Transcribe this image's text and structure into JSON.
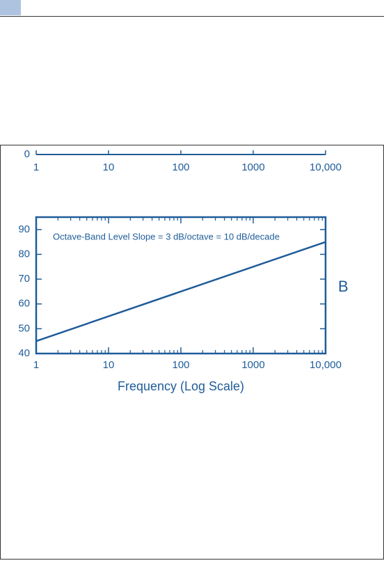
{
  "chart_data": [
    {
      "type": "line",
      "log_x": true,
      "xlim": [
        1,
        10000
      ],
      "xticks": [
        1,
        10,
        100,
        1000,
        {
          "value": 10000,
          "label": "10,000"
        }
      ],
      "yticks": [
        0
      ],
      "color": "#1f5c99"
    },
    {
      "type": "line",
      "log_x": true,
      "annotation": "Octave-Band Level Slope = 3 dB/octave = 10 dB/decade",
      "xlabel": "Frequency (Log Scale)",
      "panel_label": "B",
      "x": [
        1,
        10000
      ],
      "values": [
        45,
        85
      ],
      "color": "#1f5c99",
      "xlim": [
        1,
        10000
      ],
      "ylim": [
        40,
        95
      ],
      "xticks": [
        1,
        10,
        100,
        1000,
        {
          "value": 10000,
          "label": "10,000"
        }
      ],
      "yticks": [
        40,
        50,
        60,
        70,
        80,
        90
      ]
    }
  ]
}
